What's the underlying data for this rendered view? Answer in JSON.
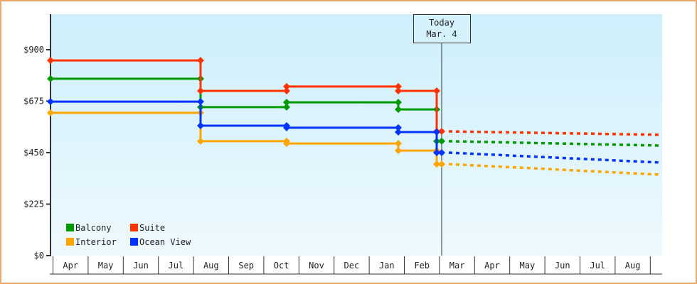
{
  "chart_data": {
    "type": "line",
    "title": "",
    "xlabel": "",
    "ylabel": "",
    "ylim": [
      0,
      1050
    ],
    "y_ticks": [
      {
        "value": 0,
        "label": "$0"
      },
      {
        "value": 225,
        "label": "$225"
      },
      {
        "value": 450,
        "label": "$450"
      },
      {
        "value": 675,
        "label": "$675"
      },
      {
        "value": 900,
        "label": "$900"
      }
    ],
    "categories": [
      "Apr",
      "May",
      "Jun",
      "Jul",
      "Aug",
      "Sep",
      "Oct",
      "Nov",
      "Dec",
      "Jan",
      "Feb",
      "Mar",
      "Apr",
      "May",
      "Jun",
      "Jul",
      "Aug"
    ],
    "today_marker": {
      "line1": "Today",
      "line2": "Mar. 4"
    },
    "grid": false,
    "legend_position": "lower-left",
    "series": [
      {
        "name": "Balcony",
        "color": "#009900",
        "history": [
          {
            "x": "Apr",
            "value": 773
          },
          {
            "x": "Aug",
            "value": 649
          },
          {
            "x": "Oct",
            "value": 670
          },
          {
            "x": "Jan",
            "value": 639
          },
          {
            "x": "Mar 4",
            "value": 500
          }
        ],
        "forecast_end": {
          "x": "Aug",
          "value": 481
        }
      },
      {
        "name": "Suite",
        "color": "#ff3300",
        "history": [
          {
            "x": "Apr",
            "value": 853
          },
          {
            "x": "Aug",
            "value": 720
          },
          {
            "x": "Oct",
            "value": 739
          },
          {
            "x": "Jan",
            "value": 720
          },
          {
            "x": "Mar 4",
            "value": 543
          }
        ],
        "forecast_end": {
          "x": "Aug",
          "value": 528
        }
      },
      {
        "name": "Interior",
        "color": "#ffa500",
        "history": [
          {
            "x": "Apr",
            "value": 624
          },
          {
            "x": "Aug",
            "value": 500
          },
          {
            "x": "Oct",
            "value": 490
          },
          {
            "x": "Jan",
            "value": 459
          },
          {
            "x": "Mar 4",
            "value": 400
          }
        ],
        "forecast_end": {
          "x": "Aug",
          "value": 354
        }
      },
      {
        "name": "Ocean View",
        "color": "#0033ff",
        "history": [
          {
            "x": "Apr",
            "value": 673
          },
          {
            "x": "Aug",
            "value": 568
          },
          {
            "x": "Oct",
            "value": 559
          },
          {
            "x": "Jan",
            "value": 540
          },
          {
            "x": "Mar 4",
            "value": 450
          }
        ],
        "forecast_end": {
          "x": "Aug",
          "value": 407
        }
      }
    ]
  },
  "legend": [
    {
      "label": "Balcony",
      "color": "#009900"
    },
    {
      "label": "Suite",
      "color": "#ff3300"
    },
    {
      "label": "Interior",
      "color": "#ffa500"
    },
    {
      "label": "Ocean View",
      "color": "#0033ff"
    }
  ]
}
